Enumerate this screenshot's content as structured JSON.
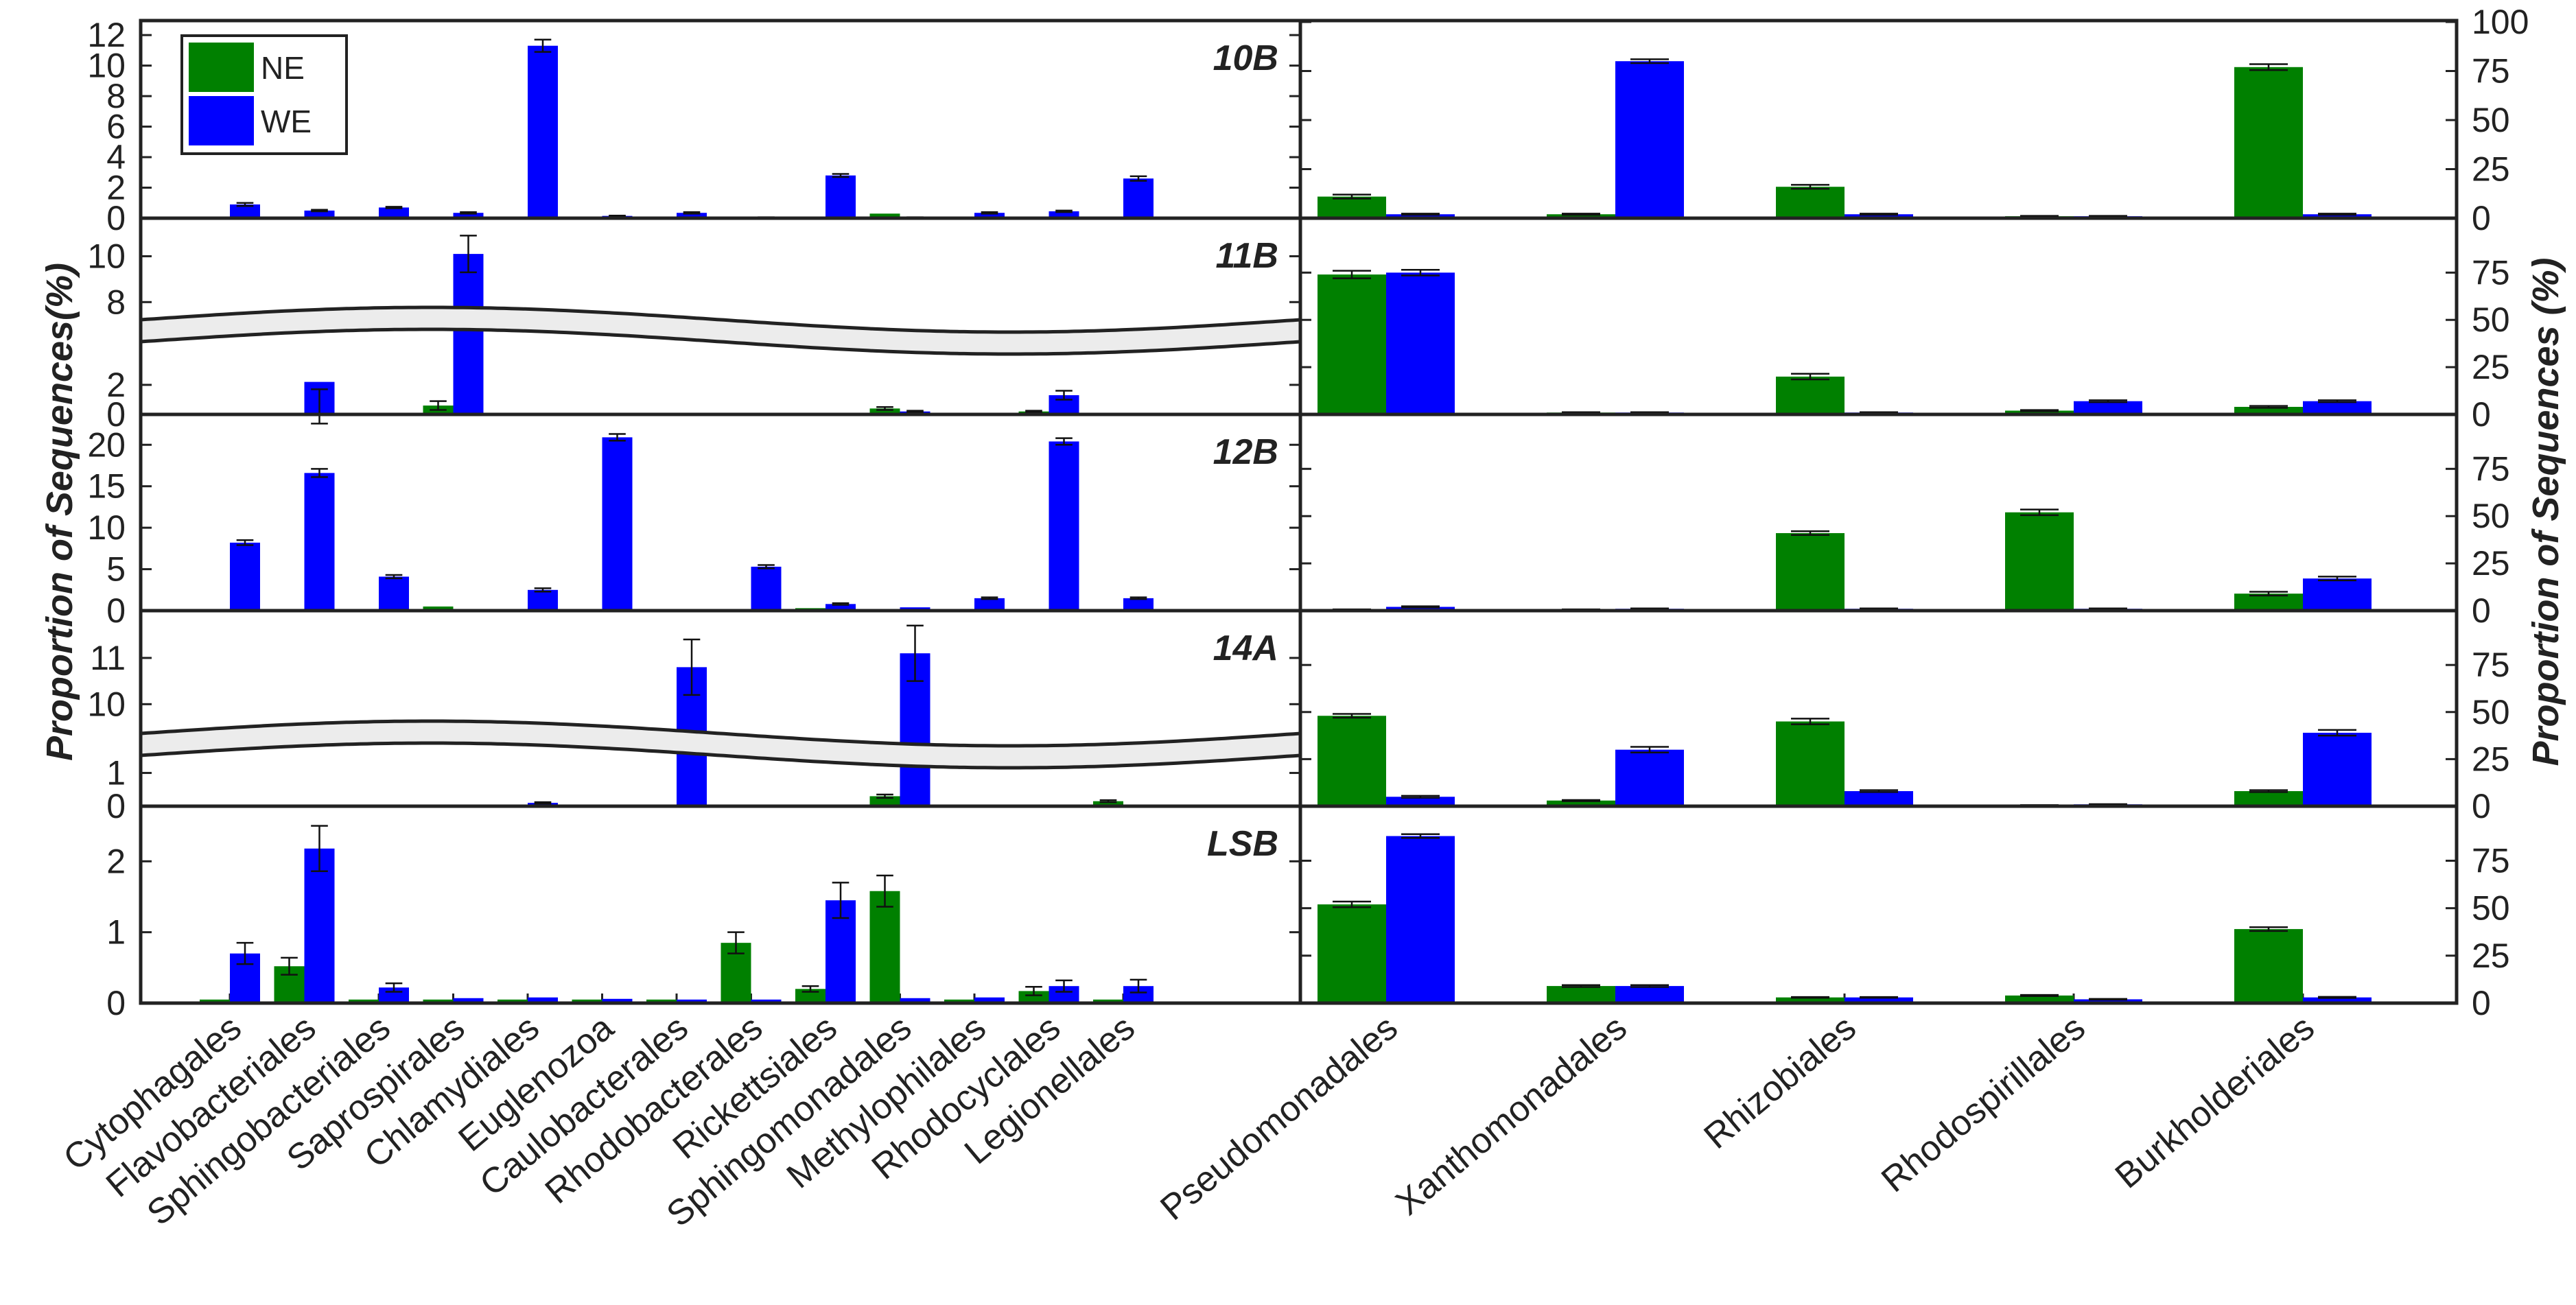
{
  "chart_data": {
    "type": "bar",
    "left_ylabel": "Proportion of Sequences(%)",
    "right_ylabel": "Proportion of Sequences (%)",
    "legend": [
      {
        "name": "NE",
        "color": "#008000"
      },
      {
        "name": "WE",
        "color": "#0000ff"
      }
    ],
    "left_categories": [
      "Cytophagales",
      "Flavobacteriales",
      "Sphingobacteriales",
      "Saprospirales",
      "Chlamydiales",
      "Euglenozoa",
      "Caulobacterales",
      "Rhodobacterales",
      "Rickettsiales",
      "Sphingomonadales",
      "Methylophilales",
      "Rhodocyclales",
      "Legionellales"
    ],
    "right_categories": [
      "Pseudomonadales",
      "Xanthomonadales",
      "Rhizobiales",
      "Rhodospirillales",
      "Burkholderiales"
    ],
    "panels": [
      {
        "label": "10B",
        "left": {
          "ylim": [
            0,
            12.5
          ],
          "ticks": [
            {
              "v": 0,
              "t": "0"
            },
            {
              "v": 2,
              "t": "2"
            },
            {
              "v": 4,
              "t": "4"
            },
            {
              "v": 6,
              "t": "6"
            },
            {
              "v": 8,
              "t": "8"
            },
            {
              "v": 10,
              "t": "10"
            },
            {
              "v": 12,
              "t": "12"
            }
          ],
          "NE": [
            0.05,
            0.08,
            0.05,
            0.05,
            0.05,
            0.05,
            0.05,
            0.05,
            0.05,
            0.3,
            0.05,
            0.05,
            0.05
          ],
          "WE": [
            0.9,
            0.5,
            0.7,
            0.35,
            11.3,
            0.15,
            0.35,
            0.05,
            2.8,
            0.05,
            0.35,
            0.45,
            2.6
          ],
          "WE_err": [
            0.1,
            0.05,
            0.05,
            0.05,
            0.4,
            0.02,
            0.05,
            0.01,
            0.1,
            0.01,
            0.05,
            0.05,
            0.15
          ]
        },
        "right": {
          "NE": [
            11,
            2,
            16,
            1,
            77
          ],
          "WE": [
            2,
            80,
            2,
            1,
            2
          ],
          "NE_err": [
            1,
            0.3,
            1,
            0.2,
            1.5
          ],
          "WE_err": [
            0.3,
            1,
            0.3,
            0.2,
            0.3
          ]
        }
      },
      {
        "label": "11B",
        "break": true,
        "left": {
          "ticks": [
            {
              "v": 0,
              "t": "0"
            },
            {
              "v": 2,
              "t": "2"
            },
            {
              "v": 8,
              "t": "8"
            },
            {
              "v": 10,
              "t": "10"
            }
          ],
          "NE": [
            0.02,
            0.05,
            0.05,
            0.6,
            0.05,
            0.02,
            0.02,
            0.02,
            0.05,
            0.4,
            0.02,
            0.2,
            0.05
          ],
          "WE": [
            0.05,
            2.2,
            0.05,
            10.1,
            0.05,
            0.05,
            0.05,
            0.02,
            0.05,
            0.2,
            0.05,
            1.3,
            0.05
          ],
          "NE_err": [
            0,
            0,
            0,
            0.3,
            0,
            0,
            0,
            0,
            0,
            0.1,
            0,
            0.05,
            0
          ],
          "WE_err": [
            0,
            0.5,
            0,
            0.8,
            0,
            0,
            0,
            0,
            0,
            0.05,
            0,
            0.3,
            0
          ]
        },
        "right": {
          "NE": [
            74,
            1,
            20,
            2,
            4
          ],
          "WE": [
            75,
            1,
            1,
            7,
            7
          ],
          "NE_err": [
            2,
            0.2,
            1.5,
            0.3,
            0.5
          ],
          "WE_err": [
            1.5,
            0.2,
            0.2,
            0.5,
            0.5
          ]
        }
      },
      {
        "label": "12B",
        "left": {
          "ylim": [
            0,
            23
          ],
          "ticks": [
            {
              "v": 0,
              "t": "0"
            },
            {
              "v": 5,
              "t": "5"
            },
            {
              "v": 10,
              "t": "10"
            },
            {
              "v": 15,
              "t": "15"
            },
            {
              "v": 20,
              "t": "20"
            }
          ],
          "NE": [
            0.05,
            0.2,
            0.1,
            0.5,
            0.1,
            0.05,
            0.05,
            0.05,
            0.3,
            0.1,
            0.05,
            0.05,
            0.05
          ],
          "WE": [
            8.2,
            16.6,
            4.1,
            0.1,
            2.5,
            20.9,
            0.1,
            5.3,
            0.8,
            0.4,
            1.5,
            20.4,
            1.5
          ],
          "WE_err": [
            0.3,
            0.5,
            0.2,
            0,
            0.2,
            0.4,
            0,
            0.2,
            0.1,
            0,
            0.1,
            0.4,
            0.1
          ]
        },
        "right": {
          "NE": [
            0.5,
            0.5,
            41,
            52,
            9
          ],
          "WE": [
            2,
            1,
            1,
            1,
            17
          ],
          "NE_err": [
            0.2,
            0.2,
            1,
            1.5,
            1
          ],
          "WE_err": [
            0.3,
            0.2,
            0.2,
            0.2,
            1
          ]
        }
      },
      {
        "label": "14A",
        "break": true,
        "left": {
          "ticks": [
            {
              "v": 0,
              "t": "0"
            },
            {
              "v": 1,
              "t": "1"
            },
            {
              "v": 10,
              "t": "10"
            },
            {
              "v": 11,
              "t": "11"
            }
          ],
          "NE": [
            0.02,
            0.02,
            0.02,
            0.02,
            0.02,
            0.02,
            0.02,
            0.02,
            0.02,
            0.3,
            0.02,
            0.02,
            0.15
          ],
          "WE": [
            0.05,
            0.05,
            0.05,
            0.05,
            0.1,
            0.05,
            10.8,
            0.05,
            0.05,
            11.1,
            0.05,
            0.05,
            0.05
          ],
          "NE_err": [
            0,
            0,
            0,
            0,
            0,
            0,
            0,
            0,
            0,
            0.05,
            0,
            0,
            0.03
          ],
          "WE_err": [
            0,
            0,
            0,
            0,
            0.02,
            0,
            0.6,
            0,
            0,
            0.6,
            0,
            0,
            0
          ]
        },
        "right": {
          "NE": [
            48,
            3,
            45,
            0.5,
            8
          ],
          "WE": [
            5,
            30,
            8,
            1,
            39
          ],
          "NE_err": [
            1,
            0.3,
            1.5,
            0.1,
            0.5
          ],
          "WE_err": [
            0.5,
            1.5,
            0.5,
            0.1,
            1.5
          ]
        }
      },
      {
        "label": "LSB",
        "left": {
          "ylim": [
            0,
            2.7
          ],
          "ticks": [
            {
              "v": 0,
              "t": "0"
            },
            {
              "v": 1,
              "t": "1"
            },
            {
              "v": 2,
              "t": "2"
            }
          ],
          "NE": [
            0.05,
            0.52,
            0.05,
            0.05,
            0.05,
            0.05,
            0.05,
            0.85,
            0.2,
            1.58,
            0.05,
            0.17,
            0.05
          ],
          "WE": [
            0.7,
            2.18,
            0.22,
            0.07,
            0.08,
            0.06,
            0.05,
            0.05,
            1.45,
            0.07,
            0.08,
            0.24,
            0.24
          ],
          "NE_err": [
            0,
            0.12,
            0,
            0,
            0,
            0,
            0,
            0.15,
            0.04,
            0.22,
            0,
            0.06,
            0
          ],
          "WE_err": [
            0.15,
            0.32,
            0.06,
            0,
            0,
            0,
            0,
            0,
            0.25,
            0,
            0,
            0.08,
            0.09
          ]
        },
        "right": {
          "NE": [
            52,
            9,
            3,
            4,
            39
          ],
          "WE": [
            88,
            9,
            3,
            2,
            3
          ],
          "NE_err": [
            1.5,
            0.5,
            0.2,
            0.3,
            1
          ],
          "WE_err": [
            1,
            0.5,
            0.2,
            0.2,
            0.3
          ]
        }
      }
    ],
    "right_axis": {
      "ylim": [
        0,
        100
      ],
      "top_ticks": [
        {
          "v": 0,
          "t": "0"
        },
        {
          "v": 25,
          "t": "25"
        },
        {
          "v": 50,
          "t": "50"
        },
        {
          "v": 75,
          "t": "75"
        },
        {
          "v": 100,
          "t": "100"
        }
      ],
      "ticks": [
        {
          "v": 0,
          "t": "0"
        },
        {
          "v": 25,
          "t": "25"
        },
        {
          "v": 50,
          "t": "50"
        },
        {
          "v": 75,
          "t": "75"
        }
      ]
    }
  }
}
